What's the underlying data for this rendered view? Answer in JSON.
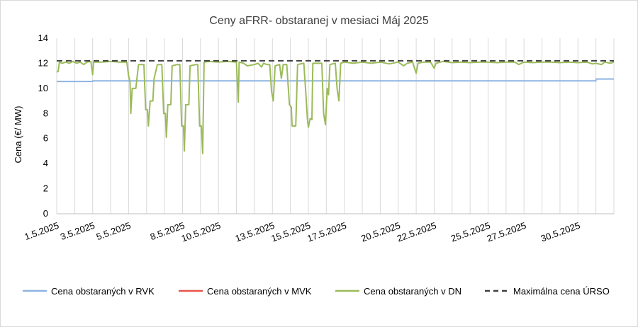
{
  "chart_data": {
    "type": "line",
    "title": "Ceny aFRR- obstaranej v mesiaci Máj 2025",
    "ylabel": "Cena (€/ MW)",
    "xlabel": "",
    "ylim": [
      0,
      14
    ],
    "yticks": [
      0,
      2,
      4,
      6,
      8,
      10,
      12,
      14
    ],
    "x_domain_days": [
      1,
      32
    ],
    "xtick_labels": [
      "1.5.2025",
      "3.5.2025",
      "5.5.2025",
      "8.5.2025",
      "10.5.2025",
      "13.5.2025",
      "15.5.2025",
      "17.5.2025",
      "20.5.2025",
      "22.5.2025",
      "25.5.2025",
      "27.5.2025",
      "30.5.2025"
    ],
    "xtick_days": [
      1,
      3,
      5,
      8,
      10,
      13,
      15,
      17,
      20,
      22,
      25,
      27,
      30
    ],
    "grid": "vertical",
    "legend_position": "bottom",
    "series": [
      {
        "name": "Cena obstaraných v RVK",
        "color": "#8eb4e3",
        "style": "solid",
        "points": [
          [
            1,
            10.55
          ],
          [
            3,
            10.55
          ],
          [
            3.01,
            10.6
          ],
          [
            31,
            10.6
          ],
          [
            31.01,
            10.75
          ],
          [
            32,
            10.75
          ]
        ]
      },
      {
        "name": "Cena obstaraných v MVK",
        "color": "#e8534a",
        "style": "solid",
        "points": []
      },
      {
        "name": "Cena obstaraných v DN",
        "color": "#9bbb59",
        "style": "solid",
        "points": [
          [
            1,
            11.3
          ],
          [
            1.08,
            11.35
          ],
          [
            1.15,
            12.1
          ],
          [
            1.3,
            12.0
          ],
          [
            1.5,
            12.1
          ],
          [
            1.7,
            12.0
          ],
          [
            1.9,
            12.15
          ],
          [
            2.1,
            12.0
          ],
          [
            2.3,
            12.1
          ],
          [
            2.5,
            11.9
          ],
          [
            2.7,
            12.1
          ],
          [
            2.9,
            12.15
          ],
          [
            3.0,
            11.1
          ],
          [
            3.05,
            12.1
          ],
          [
            3.5,
            12.1
          ],
          [
            4.0,
            12.15
          ],
          [
            4.5,
            12.1
          ],
          [
            4.9,
            12.1
          ],
          [
            5.0,
            11.0
          ],
          [
            5.08,
            10.5
          ],
          [
            5.12,
            8.0
          ],
          [
            5.2,
            10.0
          ],
          [
            5.4,
            10.0
          ],
          [
            5.55,
            11.9
          ],
          [
            5.85,
            11.9
          ],
          [
            5.95,
            8.3
          ],
          [
            6.05,
            8.3
          ],
          [
            6.1,
            7.0
          ],
          [
            6.2,
            9.0
          ],
          [
            6.35,
            9.0
          ],
          [
            6.42,
            10.8
          ],
          [
            6.6,
            11.9
          ],
          [
            6.85,
            11.9
          ],
          [
            6.95,
            8.0
          ],
          [
            7.05,
            8.0
          ],
          [
            7.1,
            6.1
          ],
          [
            7.18,
            8.7
          ],
          [
            7.35,
            8.7
          ],
          [
            7.42,
            11.8
          ],
          [
            7.7,
            11.9
          ],
          [
            7.85,
            11.9
          ],
          [
            7.95,
            7.0
          ],
          [
            8.05,
            7.0
          ],
          [
            8.1,
            5.0
          ],
          [
            8.18,
            8.7
          ],
          [
            8.35,
            8.7
          ],
          [
            8.42,
            11.8
          ],
          [
            8.75,
            11.9
          ],
          [
            8.85,
            11.9
          ],
          [
            8.95,
            7.0
          ],
          [
            9.05,
            7.0
          ],
          [
            9.12,
            4.8
          ],
          [
            9.2,
            12.1
          ],
          [
            9.5,
            12.15
          ],
          [
            10.0,
            12.1
          ],
          [
            10.5,
            12.15
          ],
          [
            11.0,
            12.1
          ],
          [
            11.1,
            8.9
          ],
          [
            11.15,
            12.1
          ],
          [
            11.4,
            12.0
          ],
          [
            11.6,
            11.8
          ],
          [
            12.0,
            11.9
          ],
          [
            12.2,
            12.0
          ],
          [
            12.4,
            11.7
          ],
          [
            12.5,
            12.0
          ],
          [
            12.7,
            11.9
          ],
          [
            12.85,
            11.9
          ],
          [
            12.95,
            9.8
          ],
          [
            13.05,
            9.0
          ],
          [
            13.15,
            11.8
          ],
          [
            13.4,
            11.9
          ],
          [
            13.5,
            10.8
          ],
          [
            13.6,
            11.9
          ],
          [
            13.8,
            11.9
          ],
          [
            13.95,
            8.7
          ],
          [
            14.05,
            8.5
          ],
          [
            14.1,
            7.0
          ],
          [
            14.3,
            7.0
          ],
          [
            14.4,
            11.9
          ],
          [
            14.75,
            12.0
          ],
          [
            14.85,
            9.8
          ],
          [
            14.95,
            7.5
          ],
          [
            15.0,
            6.9
          ],
          [
            15.1,
            7.6
          ],
          [
            15.2,
            7.5
          ],
          [
            15.25,
            12.0
          ],
          [
            15.6,
            12.0
          ],
          [
            15.75,
            12.0
          ],
          [
            15.85,
            8.0
          ],
          [
            15.95,
            7.1
          ],
          [
            16.05,
            10.0
          ],
          [
            16.12,
            9.5
          ],
          [
            16.2,
            11.9
          ],
          [
            16.5,
            12.0
          ],
          [
            16.6,
            10.0
          ],
          [
            16.7,
            9.0
          ],
          [
            16.8,
            12.0
          ],
          [
            17.0,
            12.1
          ],
          [
            17.5,
            12.0
          ],
          [
            18.0,
            12.1
          ],
          [
            18.5,
            12.0
          ],
          [
            19.0,
            12.1
          ],
          [
            19.5,
            11.95
          ],
          [
            20.0,
            12.1
          ],
          [
            20.3,
            11.8
          ],
          [
            20.5,
            12.0
          ],
          [
            20.8,
            12.1
          ],
          [
            21.0,
            11.2
          ],
          [
            21.1,
            12.0
          ],
          [
            21.4,
            12.1
          ],
          [
            21.8,
            12.1
          ],
          [
            22.0,
            11.6
          ],
          [
            22.1,
            12.0
          ],
          [
            22.5,
            12.15
          ],
          [
            23.0,
            12.05
          ],
          [
            23.5,
            12.1
          ],
          [
            24.0,
            12.05
          ],
          [
            24.5,
            12.1
          ],
          [
            25.0,
            12.1
          ],
          [
            25.5,
            12.05
          ],
          [
            26.0,
            12.1
          ],
          [
            26.5,
            12.1
          ],
          [
            26.7,
            11.9
          ],
          [
            27.0,
            12.1
          ],
          [
            27.5,
            12.05
          ],
          [
            28.0,
            12.1
          ],
          [
            28.5,
            12.1
          ],
          [
            29.0,
            12.05
          ],
          [
            29.5,
            12.1
          ],
          [
            30.0,
            12.05
          ],
          [
            30.5,
            12.1
          ],
          [
            30.8,
            11.95
          ],
          [
            31.0,
            12.0
          ],
          [
            31.3,
            11.9
          ],
          [
            31.5,
            12.1
          ],
          [
            31.8,
            12.0
          ],
          [
            32,
            12.1
          ]
        ]
      },
      {
        "name": "Maximálna cena ÚRSO",
        "color": "#404040",
        "style": "dashed",
        "points": [
          [
            1,
            12.2
          ],
          [
            32,
            12.2
          ]
        ]
      }
    ]
  }
}
